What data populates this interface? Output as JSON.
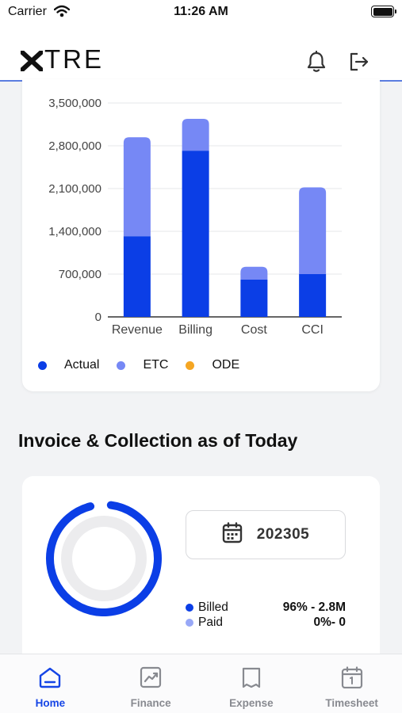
{
  "status_bar": {
    "carrier": "Carrier",
    "time": "11:26 AM"
  },
  "header": {
    "logo_text": "TRE",
    "icons": [
      "bell-icon",
      "logout-icon"
    ]
  },
  "chart_data": {
    "type": "bar",
    "categories": [
      "Revenue",
      "Billing",
      "Cost",
      "CCI"
    ],
    "series": [
      {
        "name": "Actual",
        "values": [
          1320000,
          2720000,
          610000,
          700000
        ],
        "color": "#0b3ee6"
      },
      {
        "name": "ETC",
        "values": [
          1620000,
          520000,
          210000,
          1420000
        ],
        "color": "#7688f5"
      },
      {
        "name": "ODE",
        "values": [
          0,
          0,
          0,
          0
        ],
        "color": "#f5a623"
      }
    ],
    "stacked": true,
    "ylim": [
      0,
      3500000
    ],
    "yticks": [
      "0",
      "700,000",
      "1,400,000",
      "2,100,000",
      "2,800,000",
      "3,500,000"
    ],
    "grid": true,
    "legend_position": "bottom-left"
  },
  "invoice": {
    "title": "Invoice & Collection as of Today",
    "period": "202305",
    "billed_fraction": 0.96,
    "legend": [
      {
        "label": "Billed",
        "value": "96% - 2.8M",
        "color": "#0b3ee6"
      },
      {
        "label": "Paid",
        "value": "0%- 0",
        "color": "#98a8f7"
      }
    ]
  },
  "tabs": [
    {
      "label": "Home",
      "icon": "home-icon",
      "active": true
    },
    {
      "label": "Finance",
      "icon": "finance-chart-icon",
      "active": false
    },
    {
      "label": "Expense",
      "icon": "receipt-icon",
      "active": false
    },
    {
      "label": "Timesheet",
      "icon": "calendar-icon",
      "active": false
    }
  ]
}
